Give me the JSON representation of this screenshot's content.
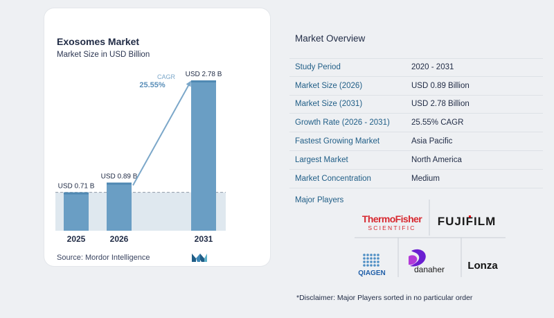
{
  "chart": {
    "title": "Exosomes Market",
    "subtitle": "Market Size in USD Billion",
    "source": "Source:  Mordor Intelligence",
    "cagr_label": "CAGR",
    "cagr_value": "25.55%"
  },
  "chart_data": {
    "type": "bar",
    "title": "Exosomes Market",
    "subtitle": "Market Size in USD Billion",
    "categories": [
      "2025",
      "2026",
      "2031"
    ],
    "values": [
      0.71,
      0.89,
      2.78
    ],
    "value_labels": [
      "USD 0.71 B",
      "USD 0.89 B",
      "USD 2.78 B"
    ],
    "ylim": [
      0,
      2.78
    ],
    "xlabel": "",
    "ylabel": "",
    "grid": false,
    "colors": {
      "bar": "#6a9ec4",
      "bar_top": "#5089b3",
      "shade": "#dfe8ef",
      "arrow": "#7ba7c9",
      "cagr_label": "#7ba7c9",
      "cagr_value": "#5b8fb9"
    }
  },
  "overview": {
    "title": "Market Overview",
    "rows": [
      {
        "label": "Study Period",
        "value": "2020 - 2031"
      },
      {
        "label": "Market Size (2026)",
        "value": "USD 0.89 Billion"
      },
      {
        "label": "Market Size (2031)",
        "value": "USD 2.78 Billion"
      },
      {
        "label": "Growth Rate (2026 - 2031)",
        "value": "25.55% CAGR"
      },
      {
        "label": "Fastest Growing Market",
        "value": "Asia Pacific"
      },
      {
        "label": "Largest Market",
        "value": "North America"
      },
      {
        "label": "Market Concentration",
        "value": "Medium"
      }
    ],
    "major_players_title": "Major Players",
    "players": {
      "thermo": {
        "line1": "ThermoFisher",
        "line2": "SCIENTIFIC"
      },
      "fujifilm": "FUJIFILM",
      "qiagen": "QIAGEN",
      "danaher": "danaher",
      "lonza": "Lonza"
    },
    "disclaimer": "*Disclaimer: Major Players sorted in no particular order"
  }
}
